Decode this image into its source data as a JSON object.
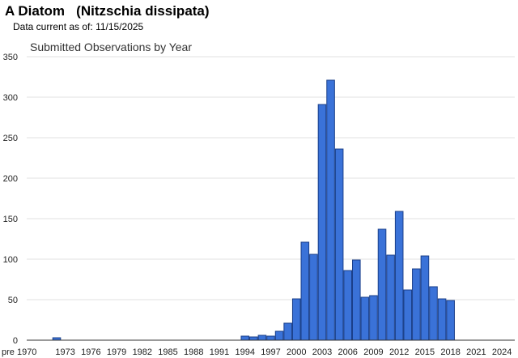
{
  "header": {
    "common_name": "A Diatom",
    "scientific_name": "(Nitzschia dissipata)",
    "data_current_label": "Data current as of:",
    "data_current_date": "11/15/2025"
  },
  "chart_data": {
    "type": "bar",
    "title": "Submitted Observations by Year",
    "xlabel": "",
    "ylabel": "",
    "ylim": [
      0,
      350
    ],
    "yticks": [
      0,
      50,
      100,
      150,
      200,
      250,
      300,
      350
    ],
    "grid": true,
    "bar_color": "#3a72d8",
    "bar_edge_color": "#1a3f8a",
    "categories": [
      "pre 1970",
      "1970",
      "1971",
      "1972",
      "1973",
      "1974",
      "1975",
      "1976",
      "1977",
      "1978",
      "1979",
      "1980",
      "1981",
      "1982",
      "1983",
      "1984",
      "1985",
      "1986",
      "1987",
      "1988",
      "1989",
      "1990",
      "1991",
      "1992",
      "1993",
      "1994",
      "1995",
      "1996",
      "1997",
      "1998",
      "1999",
      "2000",
      "2001",
      "2002",
      "2003",
      "2004",
      "2005",
      "2006",
      "2007",
      "2008",
      "2009",
      "2010",
      "2011",
      "2012",
      "2013",
      "2014",
      "2015",
      "2016",
      "2017",
      "2018",
      "2019",
      "2020",
      "2021",
      "2022",
      "2023",
      "2024",
      "2025"
    ],
    "values": [
      0,
      0,
      0,
      3,
      0,
      0,
      0,
      0,
      0,
      0,
      0,
      0,
      0,
      0,
      0,
      0,
      0,
      0,
      0,
      0,
      0,
      0,
      0,
      0,
      0,
      5,
      4,
      6,
      5,
      11,
      21,
      51,
      121,
      106,
      291,
      321,
      236,
      86,
      99,
      53,
      55,
      137,
      105,
      159,
      62,
      88,
      104,
      66,
      51,
      49,
      0,
      0,
      0,
      0,
      0,
      0,
      0
    ],
    "tick_labels": [
      "pre 1970",
      "1973",
      "1976",
      "1979",
      "1982",
      "1985",
      "1988",
      "1991",
      "1994",
      "1997",
      "2000",
      "2003",
      "2006",
      "2009",
      "2012",
      "2015",
      "2018",
      "2021",
      "2024"
    ]
  }
}
